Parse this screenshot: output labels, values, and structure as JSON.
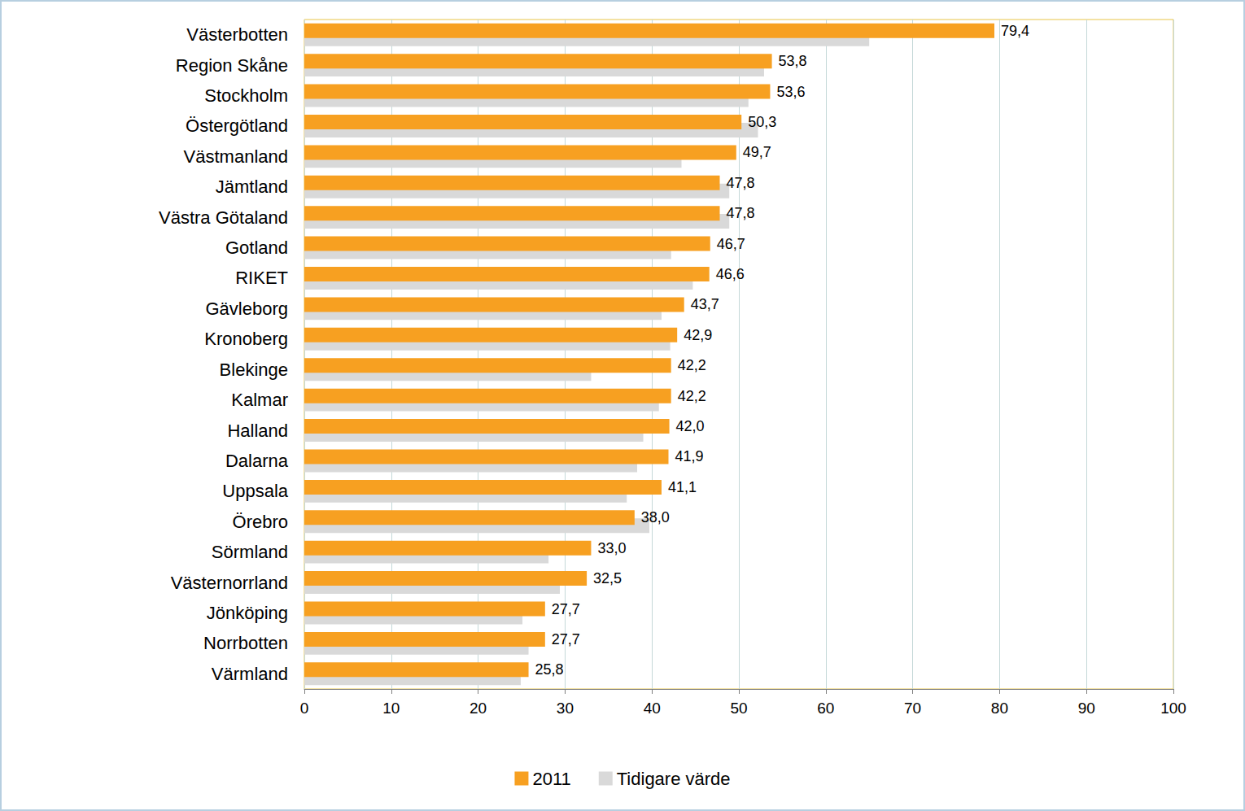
{
  "chart_data": {
    "type": "bar",
    "orientation": "horizontal",
    "categories": [
      "Västerbotten",
      "Region Skåne",
      "Stockholm",
      "Östergötland",
      "Västmanland",
      "Jämtland",
      "Västra Götaland",
      "Gotland",
      "RIKET",
      "Gävleborg",
      "Kronoberg",
      "Blekinge",
      "Kalmar",
      "Halland",
      "Dalarna",
      "Uppsala",
      "Örebro",
      "Sörmland",
      "Västernorrland",
      "Jönköping",
      "Norrbotten",
      "Värmland"
    ],
    "series": [
      {
        "name": "2011",
        "color": "#f7a021",
        "values": [
          79.4,
          53.8,
          53.6,
          50.3,
          49.7,
          47.8,
          47.8,
          46.7,
          46.6,
          43.7,
          42.9,
          42.2,
          42.2,
          42.0,
          41.9,
          41.1,
          38.0,
          33.0,
          32.5,
          27.7,
          27.7,
          25.8
        ],
        "value_labels": [
          "79,4",
          "53,8",
          "53,6",
          "50,3",
          "49,7",
          "47,8",
          "47,8",
          "46,7",
          "46,6",
          "43,7",
          "42,9",
          "42,2",
          "42,2",
          "42,0",
          "41,9",
          "41,1",
          "38,0",
          "33,0",
          "32,5",
          "27,7",
          "27,7",
          "25,8"
        ]
      },
      {
        "name": "Tidigare värde",
        "color": "#d9d9d9",
        "values": [
          65.0,
          52.9,
          51.1,
          52.2,
          43.4,
          48.9,
          48.9,
          42.2,
          44.7,
          41.1,
          42.1,
          33.0,
          40.8,
          39.0,
          38.3,
          37.1,
          39.7,
          28.1,
          29.4,
          25.1,
          25.8,
          24.9
        ]
      }
    ],
    "xlim": [
      0,
      100
    ],
    "xticks": [
      0,
      10,
      20,
      30,
      40,
      50,
      60,
      70,
      80,
      90,
      100
    ],
    "grid": true,
    "legend": "bottom",
    "data_labels": true
  }
}
